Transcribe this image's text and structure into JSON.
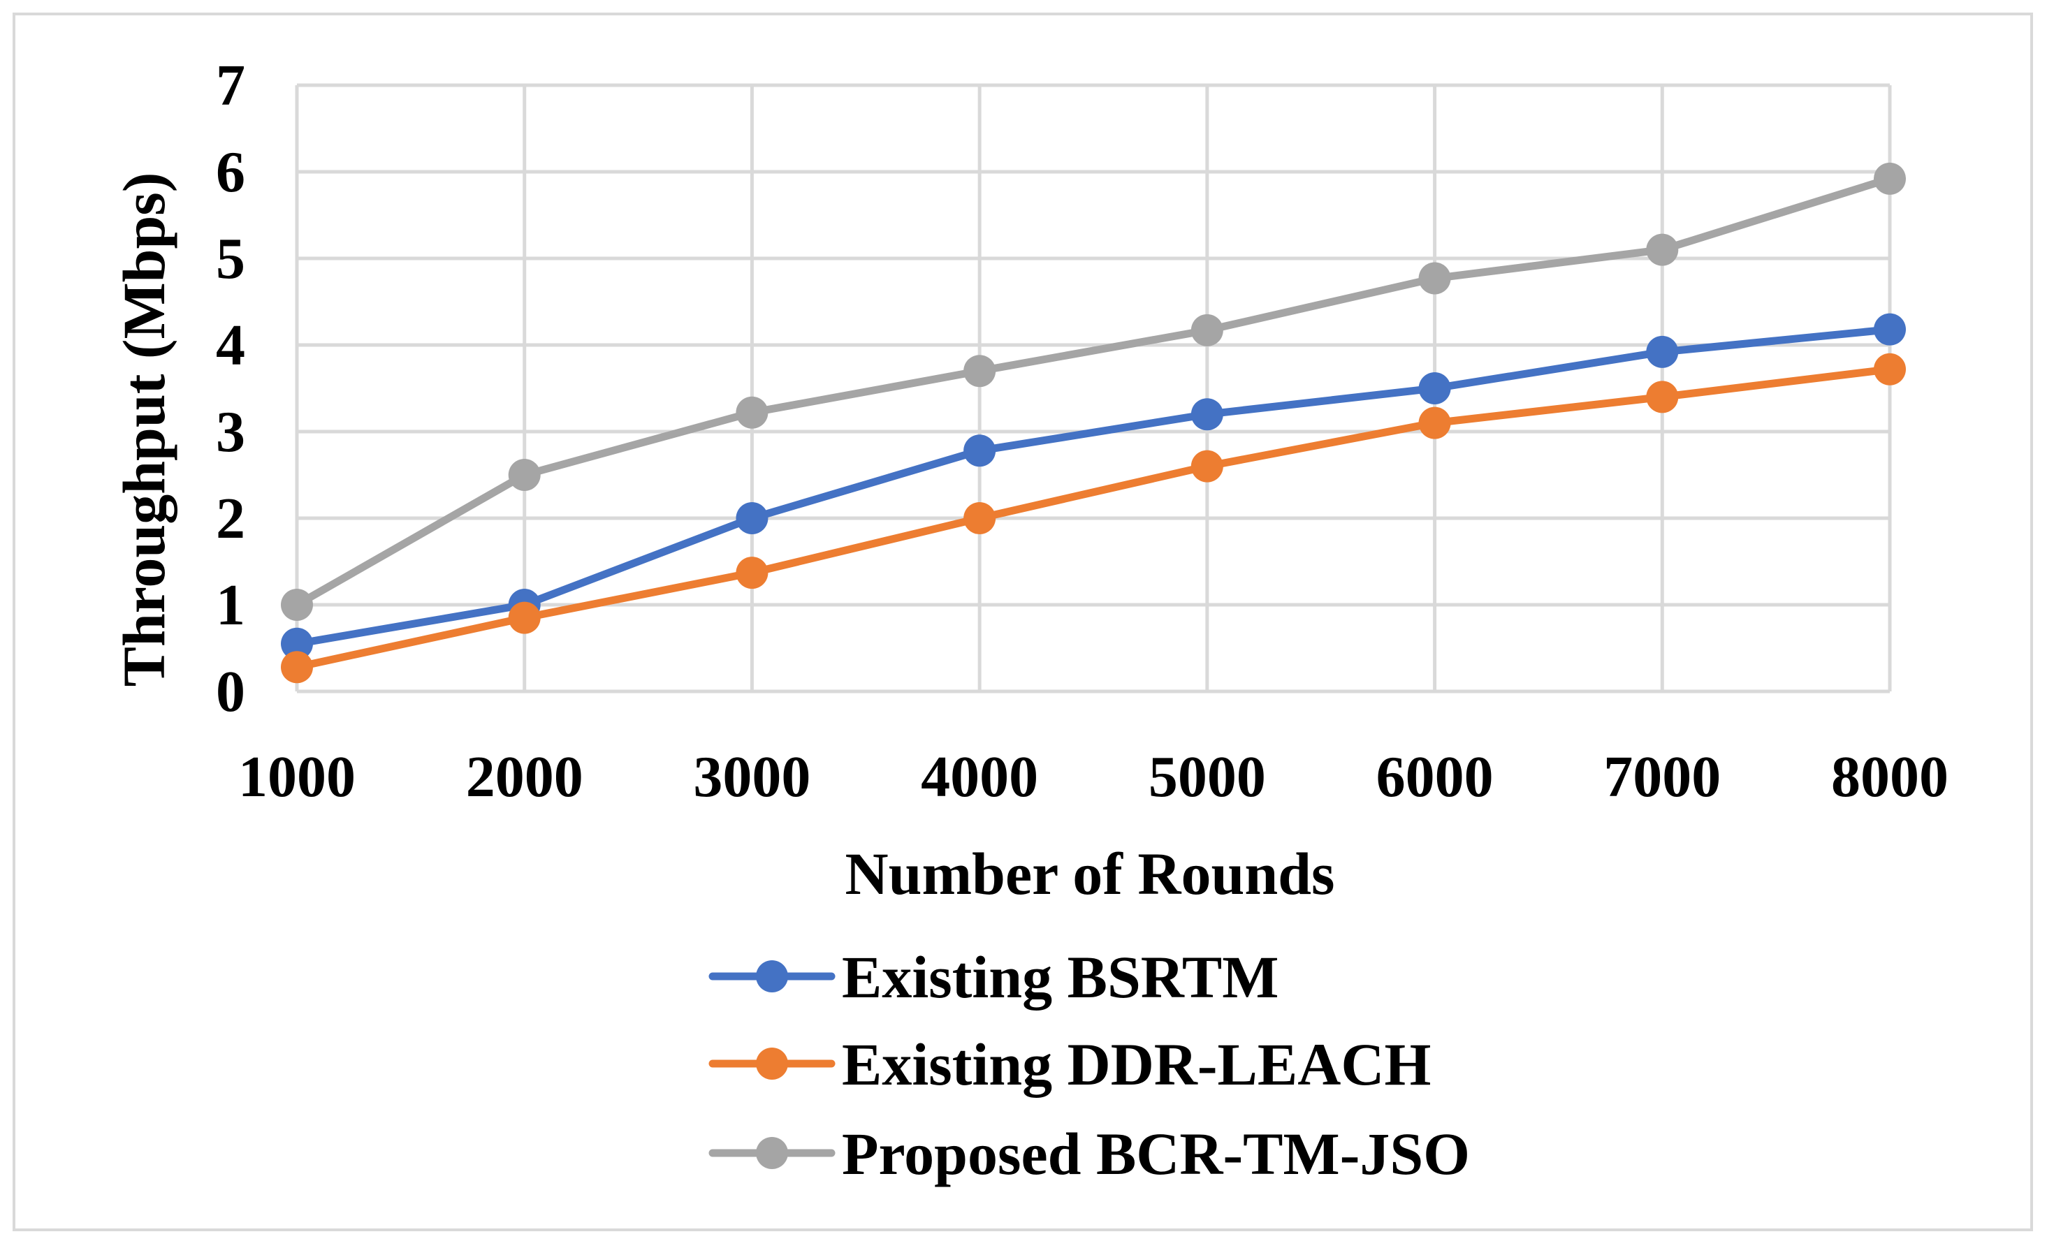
{
  "chart_data": {
    "type": "line",
    "title": "",
    "xlabel": "Number of Rounds",
    "ylabel": "Throughput (Mbps)",
    "categories": [
      "1000",
      "2000",
      "3000",
      "4000",
      "5000",
      "6000",
      "7000",
      "8000"
    ],
    "ylim": [
      0,
      7
    ],
    "yticks": [
      "0",
      "1",
      "2",
      "3",
      "4",
      "5",
      "6",
      "7"
    ],
    "grid": true,
    "legend_position": "bottom",
    "series": [
      {
        "name": "Existing BSRTM",
        "color": "#4472c4",
        "values": [
          0.55,
          1.0,
          2.0,
          2.78,
          3.2,
          3.5,
          3.92,
          4.18
        ]
      },
      {
        "name": "Existing DDR-LEACH",
        "color": "#ed7d31",
        "values": [
          0.28,
          0.85,
          1.37,
          2.0,
          2.6,
          3.1,
          3.4,
          3.72
        ]
      },
      {
        "name": "Proposed BCR-TM-JSO",
        "color": "#a5a5a5",
        "values": [
          1.0,
          2.5,
          3.22,
          3.7,
          4.17,
          4.77,
          5.1,
          5.92
        ]
      }
    ]
  }
}
